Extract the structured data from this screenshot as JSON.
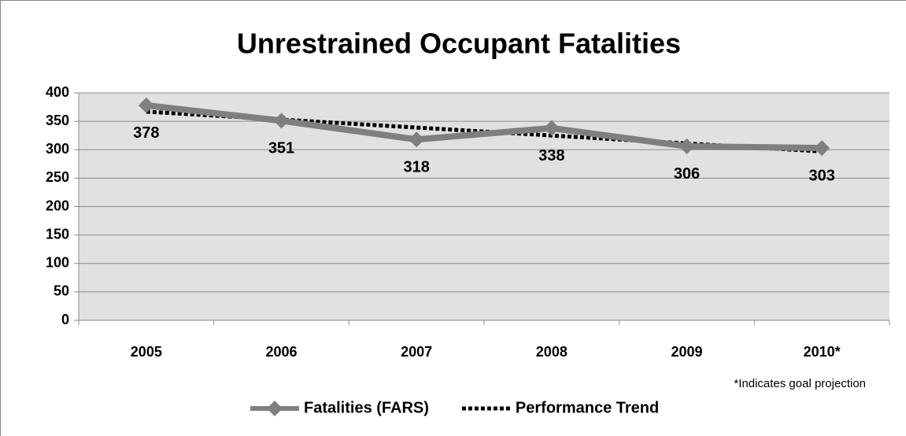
{
  "chart_data": {
    "type": "line",
    "title": "Unrestrained Occupant Fatalities",
    "categories": [
      "2005",
      "2006",
      "2007",
      "2008",
      "2009",
      "2010*"
    ],
    "series": [
      {
        "name": "Fatalities (FARS)",
        "color": "#7f7f7f",
        "marker": "diamond",
        "dash": false,
        "data_labels": true,
        "values": [
          378,
          351,
          318,
          338,
          306,
          303
        ]
      },
      {
        "name": "Performance Trend",
        "color": "#000000",
        "marker": "none",
        "dash": true,
        "data_labels": false,
        "values": [
          367,
          353,
          339,
          325,
          311,
          297
        ]
      }
    ],
    "ylim": [
      0,
      400
    ],
    "yticks": [
      0,
      50,
      100,
      150,
      200,
      250,
      300,
      350,
      400
    ],
    "grid": true,
    "annotation": "*Indicates goal projection",
    "legend": "bottom"
  }
}
